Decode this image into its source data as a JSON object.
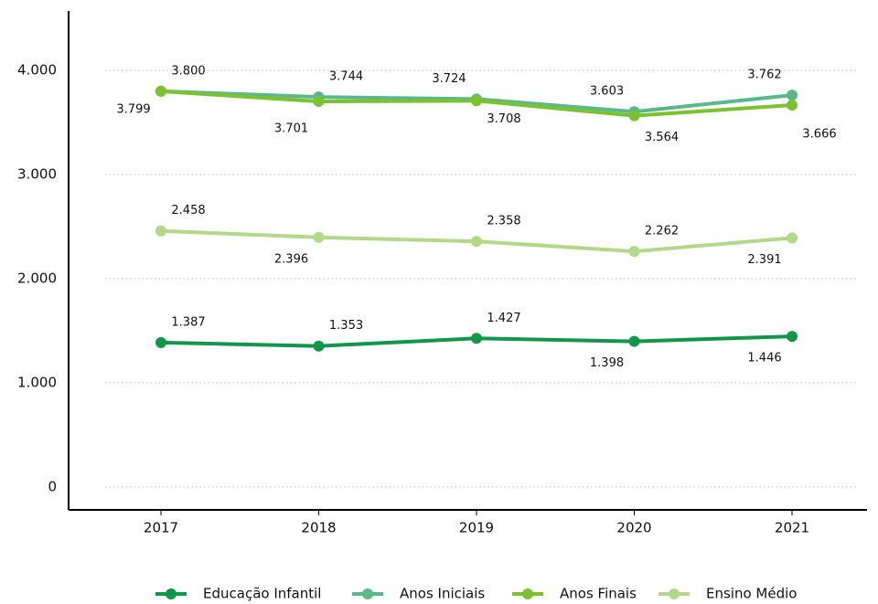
{
  "chart_data": {
    "type": "line",
    "categories": [
      "2017",
      "2018",
      "2019",
      "2020",
      "2021"
    ],
    "series": [
      {
        "name": "Educação Infantil",
        "color": "#12964a",
        "values": [
          1387,
          1353,
          1427,
          1398,
          1446
        ],
        "value_labels": [
          "1.387",
          "1.353",
          "1.427",
          "1.398",
          "1.446"
        ]
      },
      {
        "name": "Anos Iniciais",
        "color": "#5ab88c",
        "values": [
          3800,
          3744,
          3724,
          3603,
          3762
        ],
        "value_labels": [
          "3.800",
          "3.744",
          "3.724",
          "3.603",
          "3.762"
        ]
      },
      {
        "name": "Anos Finais",
        "color": "#7cc230",
        "values": [
          3799,
          3701,
          3708,
          3564,
          3666
        ],
        "value_labels": [
          "3.799",
          "3.701",
          "3.708",
          "3.564",
          "3.666"
        ]
      },
      {
        "name": "Ensino Médio",
        "color": "#b3d889",
        "values": [
          2458,
          2396,
          2358,
          2262,
          2391
        ],
        "value_labels": [
          "2.458",
          "2.396",
          "2.358",
          "2.262",
          "2.391"
        ]
      }
    ],
    "ylim": [
      -220,
      4570
    ],
    "yticks": [
      0,
      {
        "value": 1000,
        "label": "1.000"
      },
      {
        "value": 2000,
        "label": "2.000"
      },
      {
        "value": 3000,
        "label": "3.000"
      },
      {
        "value": 4000,
        "label": "4.000"
      }
    ],
    "grid": true,
    "legend": "bottom"
  }
}
